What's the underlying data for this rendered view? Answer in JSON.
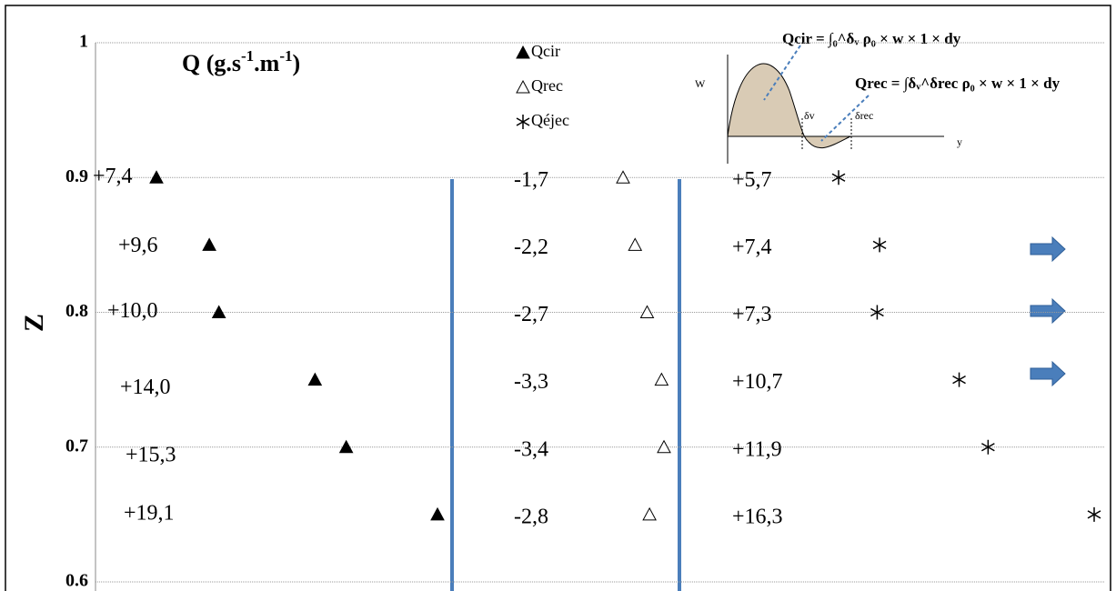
{
  "chart_data": {
    "type": "scatter",
    "title": [
      "Q (g.s",
      "-1",
      ".m",
      "-1",
      ")"
    ],
    "y_label": "Z",
    "y": [
      0.9,
      0.85,
      0.8,
      0.75,
      0.7,
      0.65
    ],
    "ylim": [
      0.6,
      1
    ],
    "yticks": [
      0.6,
      0.7,
      0.8,
      0.9,
      1
    ],
    "grid": true,
    "series": [
      {
        "name": "Qcir",
        "color": "#000000",
        "marker": "filled-triangle",
        "values": [
          7.4,
          9.6,
          10.0,
          14.0,
          15.3,
          19.1
        ],
        "value_labels": [
          "+7,4",
          "+9,6",
          "+10,0",
          "+14,0",
          "+15,3",
          "+19,1"
        ]
      },
      {
        "name": "Qrec",
        "color": "#000000",
        "marker": "open-triangle",
        "values": [
          -1.7,
          -2.2,
          -2.7,
          -3.3,
          -3.4,
          -2.8
        ],
        "value_labels": [
          "-1,7",
          "-2,2",
          "-2,7",
          "-3,3",
          "-3,4",
          "-2,8"
        ]
      },
      {
        "name": "Qéjec",
        "color": "#000000",
        "marker": "asterisk",
        "values": [
          5.7,
          7.4,
          7.3,
          10.7,
          11.9,
          16.3
        ],
        "value_labels": [
          "+5,7",
          "+7,4",
          "+7,3",
          "+10,7",
          "+11,9",
          "+16,3"
        ]
      }
    ],
    "inset": {
      "y_label": "W",
      "x_label": "y",
      "delta_v": "δv",
      "delta_rec": "δrec",
      "formulas": [
        "Qcir = ∫₀^δᵥ ρ₀ × w × 1 × dy",
        "Qrec = ∫δᵥ^δrec ρ₀ × w × 1 × dy"
      ]
    }
  }
}
